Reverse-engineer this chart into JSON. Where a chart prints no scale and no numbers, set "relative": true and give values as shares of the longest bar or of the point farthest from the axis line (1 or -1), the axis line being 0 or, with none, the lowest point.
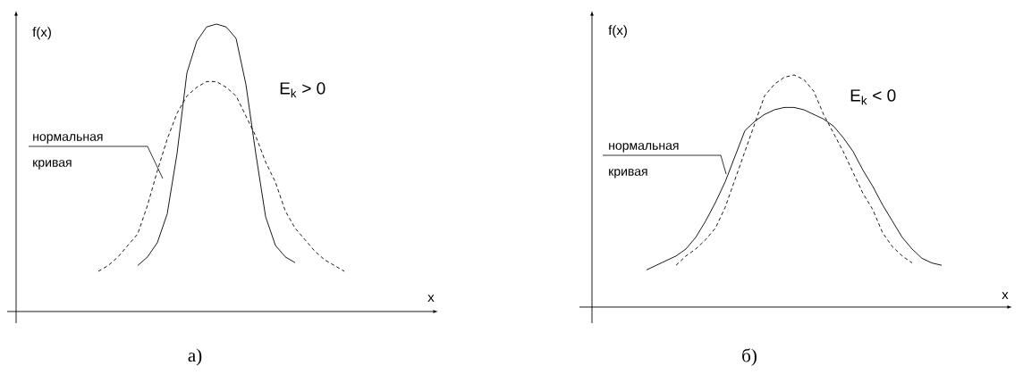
{
  "chart_data": [
    {
      "type": "line",
      "relative": true,
      "title": "а)",
      "xlabel": "x",
      "ylabel": "f(x)",
      "annotations": [
        "E$_{k}$ > 0"
      ],
      "categories": [
        null,
        null,
        null,
        null,
        null,
        null,
        null,
        null,
        null,
        null,
        null,
        null,
        null,
        null,
        null,
        null,
        null,
        null,
        null,
        null,
        null,
        null,
        null,
        null,
        null,
        null
      ],
      "series": [
        {
          "color": "#000000",
          "line_style": "solid",
          "values": [
            null,
            null,
            null,
            null,
            0.16,
            0.19,
            0.24,
            0.34,
            0.55,
            0.83,
            0.94,
            0.99,
            1.0,
            0.99,
            0.95,
            0.79,
            0.55,
            0.33,
            0.23,
            0.19,
            0.17,
            null,
            null,
            null,
            null,
            null
          ]
        },
        {
          "name": "нормальная кривая",
          "color": "#000000",
          "line_style": "dashed",
          "values": [
            0.14,
            0.16,
            0.19,
            0.23,
            0.27,
            0.37,
            0.49,
            0.6,
            0.69,
            0.75,
            0.78,
            0.8,
            0.8,
            0.78,
            0.75,
            0.68,
            0.61,
            0.52,
            0.45,
            0.35,
            0.29,
            0.25,
            0.21,
            0.18,
            0.16,
            0.14
          ]
        }
      ]
    },
    {
      "type": "line",
      "relative": true,
      "title": "б)",
      "xlabel": "x",
      "ylabel": "f(x)",
      "annotations": [
        "E$_{k}$ < 0"
      ],
      "categories": [
        null,
        null,
        null,
        null,
        null,
        null,
        null,
        null,
        null,
        null,
        null,
        null,
        null,
        null,
        null,
        null,
        null,
        null,
        null,
        null,
        null,
        null,
        null,
        null,
        null,
        null,
        null,
        null,
        null,
        null,
        null
      ],
      "series": [
        {
          "color": "#000000",
          "line_style": "solid",
          "values": [
            0.16,
            0.18,
            0.2,
            0.22,
            0.25,
            0.3,
            0.37,
            0.45,
            0.54,
            0.65,
            0.76,
            0.8,
            0.83,
            0.85,
            0.86,
            0.86,
            0.85,
            0.83,
            0.81,
            0.78,
            0.73,
            0.67,
            0.59,
            0.52,
            0.44,
            0.37,
            0.3,
            0.25,
            0.21,
            0.19,
            0.18
          ]
        },
        {
          "name": "нормальная кривая",
          "color": "#000000",
          "line_style": "dashed",
          "values": [
            null,
            null,
            null,
            0.18,
            0.22,
            0.25,
            0.29,
            0.34,
            0.43,
            0.55,
            0.67,
            0.79,
            0.91,
            0.96,
            0.99,
            1.0,
            0.98,
            0.93,
            0.83,
            0.75,
            0.67,
            0.58,
            0.49,
            0.42,
            0.32,
            0.26,
            0.22,
            0.19,
            null,
            null,
            null
          ]
        }
      ]
    }
  ]
}
